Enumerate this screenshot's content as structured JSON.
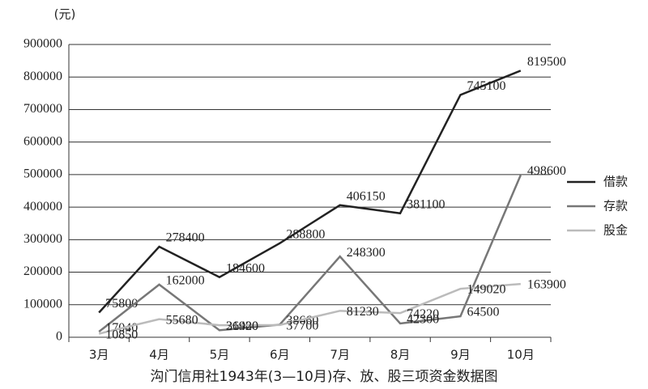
{
  "chart_data": {
    "type": "line",
    "title": "沟门信用社1943年(3—10月)存、放、股三项资金数据图",
    "y_label": "(元)",
    "categories": [
      "3月",
      "4月",
      "5月",
      "6月",
      "7月",
      "8月",
      "9月",
      "10月"
    ],
    "series": [
      {
        "name": "借款",
        "color": "#222222",
        "values": [
          75800,
          278400,
          184600,
          288800,
          406150,
          381100,
          745100,
          819500
        ]
      },
      {
        "name": "存款",
        "color": "#777777",
        "values": [
          17040,
          162000,
          21400,
          38660,
          248300,
          42300,
          64500,
          498600
        ]
      },
      {
        "name": "股金",
        "color": "#bbbbbb",
        "values": [
          10850,
          55680,
          36920,
          37700,
          81230,
          74220,
          149020,
          163900
        ]
      }
    ],
    "ylim": [
      0,
      900000
    ],
    "yticks": [
      0,
      100000,
      200000,
      300000,
      400000,
      500000,
      600000,
      700000,
      800000,
      900000
    ],
    "grid": true,
    "legend": "right"
  }
}
